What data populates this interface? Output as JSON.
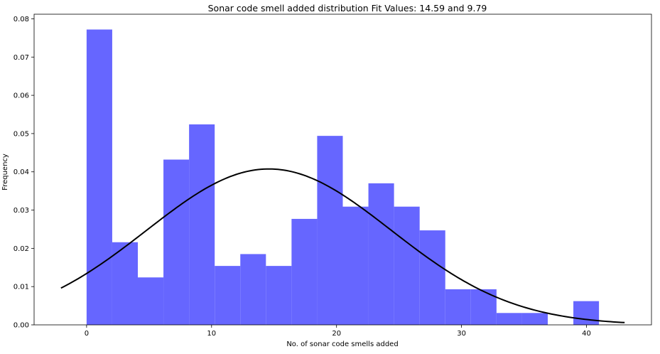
{
  "chart_data": {
    "type": "bar",
    "title": "Sonar code smell added distribution Fit Values: 14.59 and 9.79",
    "xlabel": "No. of sonar code smells added",
    "ylabel": "Frequency",
    "xlim": [
      -4.2,
      45.2
    ],
    "ylim": [
      0,
      0.0812
    ],
    "xticks": [
      0,
      10,
      20,
      30,
      40
    ],
    "yticks": [
      0.0,
      0.01,
      0.02,
      0.03,
      0.04,
      0.05,
      0.06,
      0.07,
      0.08
    ],
    "ytick_labels": [
      "0.00",
      "0.01",
      "0.02",
      "0.03",
      "0.04",
      "0.05",
      "0.06",
      "0.07",
      "0.08"
    ],
    "grid": false,
    "bar_color": "#6666ff",
    "line_color": "#000000",
    "bins": [
      {
        "x0": 0.0,
        "x1": 2.05,
        "value": 0.0772
      },
      {
        "x0": 2.05,
        "x1": 4.1,
        "value": 0.0216
      },
      {
        "x0": 4.1,
        "x1": 6.15,
        "value": 0.0124
      },
      {
        "x0": 6.15,
        "x1": 8.2,
        "value": 0.0432
      },
      {
        "x0": 8.2,
        "x1": 10.25,
        "value": 0.0524
      },
      {
        "x0": 10.25,
        "x1": 12.3,
        "value": 0.0154
      },
      {
        "x0": 12.3,
        "x1": 14.35,
        "value": 0.0185
      },
      {
        "x0": 14.35,
        "x1": 16.4,
        "value": 0.0154
      },
      {
        "x0": 16.4,
        "x1": 18.45,
        "value": 0.0277
      },
      {
        "x0": 18.45,
        "x1": 20.5,
        "value": 0.0494
      },
      {
        "x0": 20.5,
        "x1": 22.55,
        "value": 0.0309
      },
      {
        "x0": 22.55,
        "x1": 24.6,
        "value": 0.037
      },
      {
        "x0": 24.6,
        "x1": 26.65,
        "value": 0.0309
      },
      {
        "x0": 26.65,
        "x1": 28.7,
        "value": 0.0247
      },
      {
        "x0": 28.7,
        "x1": 30.75,
        "value": 0.0093
      },
      {
        "x0": 30.75,
        "x1": 32.8,
        "value": 0.0093
      },
      {
        "x0": 32.8,
        "x1": 34.85,
        "value": 0.0031
      },
      {
        "x0": 34.85,
        "x1": 36.9,
        "value": 0.0031
      },
      {
        "x0": 38.95,
        "x1": 41.0,
        "value": 0.0062
      }
    ],
    "fit": {
      "type": "normal",
      "mean": 14.59,
      "std": 9.79,
      "x_range": [
        -2.05,
        43.05
      ]
    }
  }
}
